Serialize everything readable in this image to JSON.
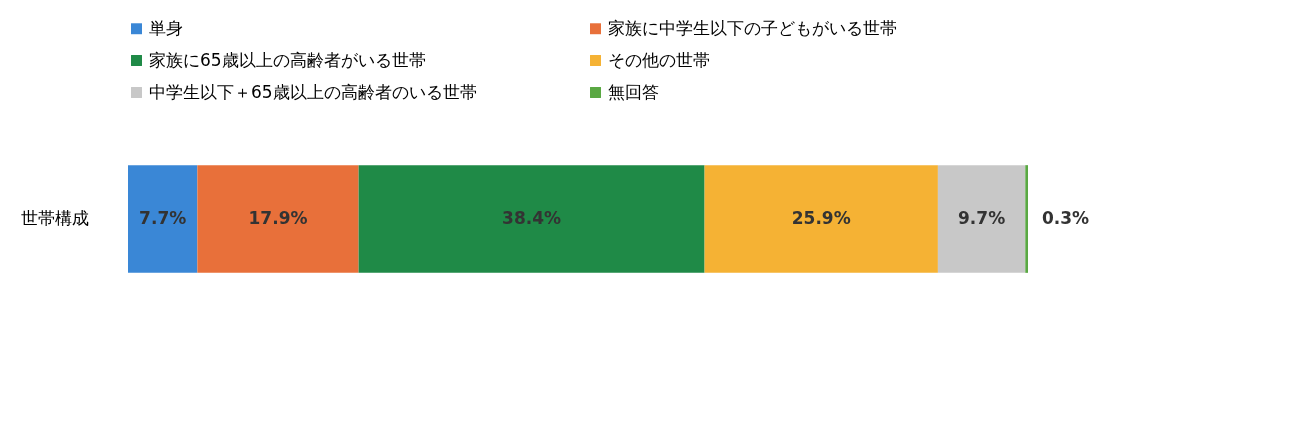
{
  "chart_data": {
    "type": "bar",
    "orientation": "horizontal",
    "stacked": true,
    "categories": [
      "世帯構成"
    ],
    "legend": "top",
    "series": [
      {
        "name": "単身",
        "color": "#3a87d6",
        "values": [
          7.7
        ],
        "value_labels": [
          "7.7%"
        ]
      },
      {
        "name": "家族に中学生以下の子どもがいる世帯",
        "color": "#e8703a",
        "values": [
          17.9
        ],
        "value_labels": [
          "17.9%"
        ]
      },
      {
        "name": "家族に65歳以上の高齢者がいる世帯",
        "color": "#1f8a47",
        "values": [
          38.4
        ],
        "value_labels": [
          "38.4%"
        ]
      },
      {
        "name": "その他の世帯",
        "color": "#f5b234",
        "values": [
          25.9
        ],
        "value_labels": [
          "25.9%"
        ]
      },
      {
        "name": "中学生以下＋65歳以上の高齢者のいる世帯",
        "color": "#c8c8c8",
        "values": [
          9.7
        ],
        "value_labels": [
          "9.7%"
        ]
      },
      {
        "name": "無回答",
        "color": "#5aa843",
        "values": [
          0.3
        ],
        "value_labels": [
          "0.3%"
        ]
      }
    ]
  }
}
